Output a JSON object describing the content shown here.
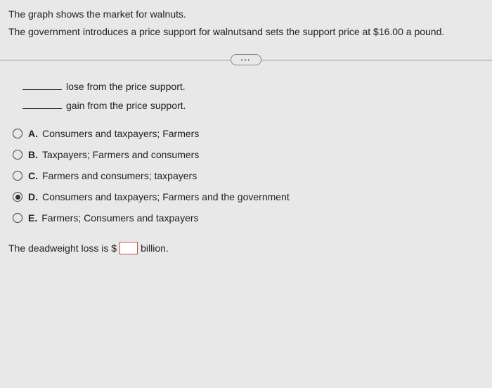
{
  "intro": {
    "line1": "The graph shows the market for walnuts.",
    "line2": "The government introduces a price support for walnutsand sets the support price at $16.00 a pound."
  },
  "pill_label": "•••",
  "fill": {
    "lose_text": "lose from the price support.",
    "gain_text": "gain from the price support."
  },
  "options": [
    {
      "letter": "A.",
      "text": "Consumers and taxpayers; Farmers",
      "selected": false
    },
    {
      "letter": "B.",
      "text": "Taxpayers; Farmers and consumers",
      "selected": false
    },
    {
      "letter": "C.",
      "text": "Farmers and consumers; taxpayers",
      "selected": false
    },
    {
      "letter": "D.",
      "text": "Consumers and taxpayers; Farmers and the government",
      "selected": true
    },
    {
      "letter": "E.",
      "text": "Farmers; Consumers and taxpayers",
      "selected": false
    }
  ],
  "dwl": {
    "prefix": "The deadweight loss is $",
    "value": "",
    "suffix": "billion."
  },
  "colors": {
    "background": "#e8e8e8",
    "text": "#222222",
    "divider": "#9a9a9a",
    "input_border": "#c0504d"
  }
}
